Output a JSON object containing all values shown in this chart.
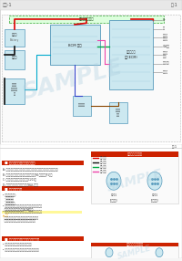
{
  "title_left": "整车-1",
  "title_right": "第-1",
  "page_bg": "#f5f5f5",
  "section1_bg": "#ffffff",
  "section2_bg": "#ffffff",
  "border_color": "#cccccc",
  "header_bg": "#e8e8e8",
  "diagram_border": "#aaaaaa",
  "wire_red": "#dd0000",
  "wire_black": "#111111",
  "wire_green": "#00aa44",
  "wire_pink": "#ee44aa",
  "wire_cyan": "#00aacc",
  "wire_blue": "#3344cc",
  "component_fill": "#cce8f0",
  "component_border": "#5599bb",
  "sample_color": "#aaccdd",
  "sample_alpha": 0.35,
  "text_color": "#222222",
  "text_small": "#333333",
  "section_header_bg": "#cc2200",
  "section_header_color": "#ffffff",
  "yellow_note_bg": "#ffee00",
  "figsize": [
    2.0,
    2.83
  ],
  "dpi": 100
}
